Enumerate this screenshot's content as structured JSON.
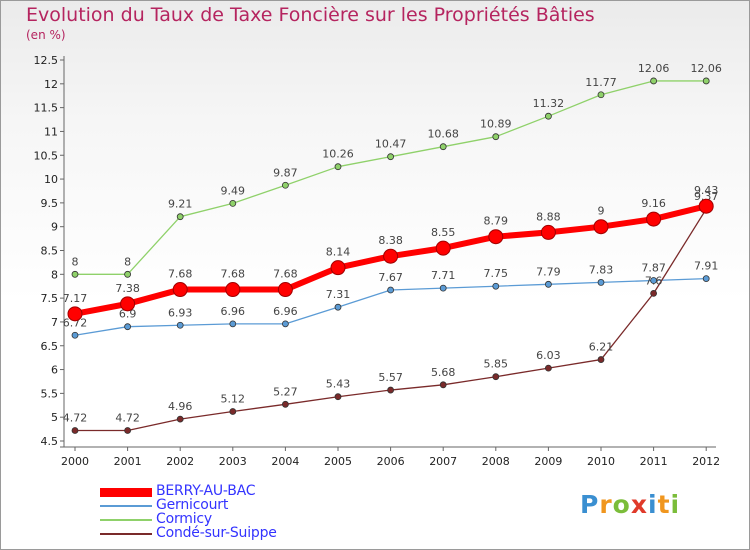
{
  "title": "Evolution du Taux de Taxe Foncière sur les Propriétés Bâties",
  "subtitle": "(en %)",
  "logo": {
    "letters": [
      "P",
      "r",
      "o",
      "x",
      "i",
      "t",
      "i"
    ],
    "colors": [
      "#3a8fd1",
      "#f0961e",
      "#7bbd3a",
      "#e03a2a",
      "#3a8fd1",
      "#f0961e",
      "#7bbd3a"
    ]
  },
  "chart_data": {
    "type": "line",
    "title": "Evolution du Taux de Taxe Foncière sur les Propriétés Bâties",
    "ylabel": "(en %)",
    "xlabel": "",
    "ylim": [
      4.5,
      12.5
    ],
    "yticks": [
      "4.5",
      "5",
      "5.5",
      "6",
      "6.5",
      "7",
      "7.5",
      "8",
      "8.5",
      "9",
      "9.5",
      "10",
      "10.5",
      "11",
      "11.5",
      "12",
      "12.5"
    ],
    "categories": [
      "2000",
      "2001",
      "2002",
      "2003",
      "2004",
      "2005",
      "2006",
      "2007",
      "2008",
      "2009",
      "2010",
      "2011",
      "2012"
    ],
    "series": [
      {
        "name": "Cormicy",
        "color": "#8fd16a",
        "width": 1.3,
        "values": [
          8,
          8,
          9.21,
          9.49,
          9.87,
          10.26,
          10.47,
          10.68,
          10.89,
          11.32,
          11.77,
          12.06,
          12.06
        ],
        "labels": [
          "8",
          "8",
          "9.21",
          "9.49",
          "9.87",
          "10.26",
          "10.47",
          "10.68",
          "10.89",
          "11.32",
          "11.77",
          "12.06",
          "12.06"
        ]
      },
      {
        "name": "Gernicourt",
        "color": "#5b9bd5",
        "width": 1.3,
        "values": [
          6.72,
          6.9,
          6.93,
          6.96,
          6.96,
          7.31,
          7.67,
          7.71,
          7.75,
          7.79,
          7.83,
          7.87,
          7.91
        ],
        "labels": [
          "6.72",
          "6.9",
          "6.93",
          "6.96",
          "6.96",
          "7.31",
          "7.67",
          "7.71",
          "7.75",
          "7.79",
          "7.83",
          "7.87",
          "7.91"
        ]
      },
      {
        "name": "Condé-sur-Suippe",
        "color": "#7a2a2a",
        "width": 1.3,
        "values": [
          4.72,
          4.72,
          4.96,
          5.12,
          5.27,
          5.43,
          5.57,
          5.68,
          5.85,
          6.03,
          6.21,
          7.6,
          9.37
        ],
        "labels": [
          "4.72",
          "4.72",
          "4.96",
          "5.12",
          "5.27",
          "5.43",
          "5.57",
          "5.68",
          "5.85",
          "6.03",
          "6.21",
          "7.6",
          "9.37"
        ]
      },
      {
        "name": "BERRY-AU-BAC",
        "color": "#ff0000",
        "width": 6,
        "values": [
          7.17,
          7.38,
          7.68,
          7.68,
          7.68,
          8.14,
          8.38,
          8.55,
          8.79,
          8.88,
          9,
          9.16,
          9.43
        ],
        "labels": [
          "7.17",
          "7.38",
          "7.68",
          "7.68",
          "7.68",
          "8.14",
          "8.38",
          "8.55",
          "8.79",
          "8.88",
          "9",
          "9.16",
          "9.43"
        ]
      }
    ],
    "legend": [
      {
        "name": "BERRY-AU-BAC",
        "color": "#ff0000",
        "thick": true
      },
      {
        "name": "Gernicourt",
        "color": "#5b9bd5",
        "thick": false
      },
      {
        "name": "Cormicy",
        "color": "#8fd16a",
        "thick": false
      },
      {
        "name": "Condé-sur-Suippe",
        "color": "#7a2a2a",
        "thick": false
      }
    ],
    "grid": false
  }
}
